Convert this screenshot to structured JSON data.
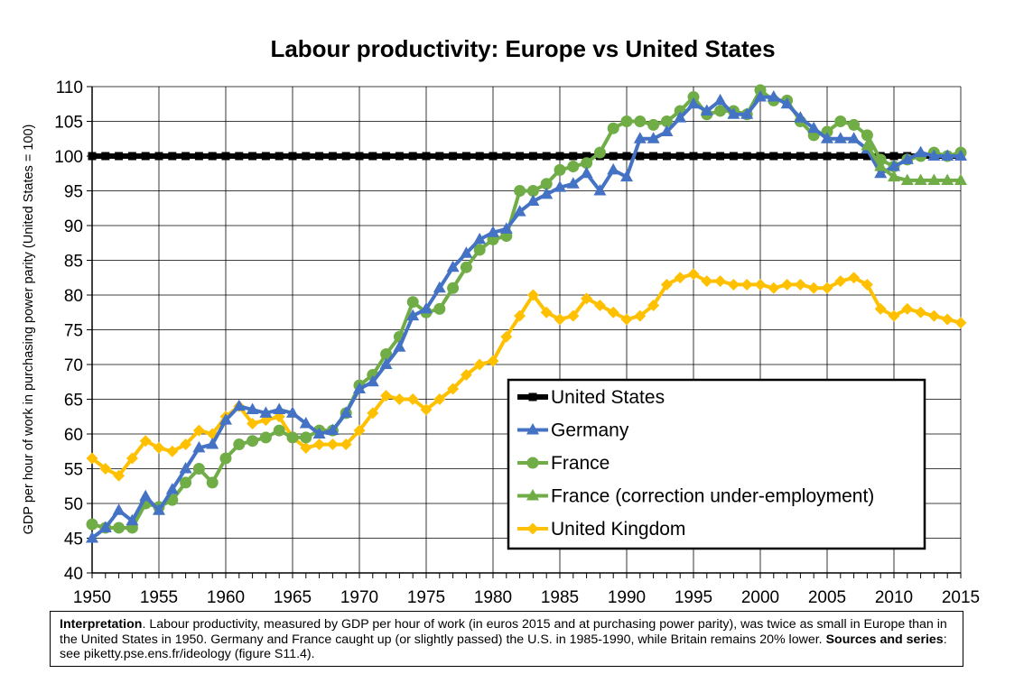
{
  "chart_data": {
    "type": "line",
    "title": "Labour productivity: Europe vs United States",
    "ylabel": "GDP per hour of work in purchasing power parity (United States = 100)",
    "xlabel": "",
    "xlim": [
      1950,
      2015
    ],
    "ylim": [
      40,
      110
    ],
    "grid": true,
    "legend_position": "bottom-right",
    "x_ticks": [
      1950,
      1955,
      1960,
      1965,
      1970,
      1975,
      1980,
      1985,
      1990,
      1995,
      2000,
      2005,
      2010,
      2015
    ],
    "y_ticks": [
      40,
      45,
      50,
      55,
      60,
      65,
      70,
      75,
      80,
      85,
      90,
      95,
      100,
      105,
      110
    ],
    "x": [
      1950,
      1951,
      1952,
      1953,
      1954,
      1955,
      1956,
      1957,
      1958,
      1959,
      1960,
      1961,
      1962,
      1963,
      1964,
      1965,
      1966,
      1967,
      1968,
      1969,
      1970,
      1971,
      1972,
      1973,
      1974,
      1975,
      1976,
      1977,
      1978,
      1979,
      1980,
      1981,
      1982,
      1983,
      1984,
      1985,
      1986,
      1987,
      1988,
      1989,
      1990,
      1991,
      1992,
      1993,
      1994,
      1995,
      1996,
      1997,
      1998,
      1999,
      2000,
      2001,
      2002,
      2003,
      2004,
      2005,
      2006,
      2007,
      2008,
      2009,
      2010,
      2011,
      2012,
      2013,
      2014,
      2015
    ],
    "series": [
      {
        "name": "United States",
        "color": "#000000",
        "marker": "square",
        "values": [
          100,
          100,
          100,
          100,
          100,
          100,
          100,
          100,
          100,
          100,
          100,
          100,
          100,
          100,
          100,
          100,
          100,
          100,
          100,
          100,
          100,
          100,
          100,
          100,
          100,
          100,
          100,
          100,
          100,
          100,
          100,
          100,
          100,
          100,
          100,
          100,
          100,
          100,
          100,
          100,
          100,
          100,
          100,
          100,
          100,
          100,
          100,
          100,
          100,
          100,
          100,
          100,
          100,
          100,
          100,
          100,
          100,
          100,
          100,
          100,
          100,
          100,
          100,
          100,
          100,
          100
        ]
      },
      {
        "name": "Germany",
        "color": "#4472C4",
        "marker": "triangle",
        "values": [
          45,
          46.5,
          49,
          47.5,
          51,
          49,
          52,
          55,
          58,
          58.5,
          62,
          64,
          63.5,
          63,
          63.5,
          63,
          61.5,
          60,
          60.5,
          63,
          66.5,
          67.5,
          70,
          72.5,
          77,
          78,
          81,
          84,
          86,
          88,
          89,
          89.5,
          92,
          93.5,
          94.5,
          95.5,
          96,
          97.5,
          95,
          98,
          97,
          102.5,
          102.5,
          103.5,
          105.5,
          107.5,
          106.5,
          108,
          106,
          106,
          108.5,
          108.5,
          107.5,
          105.5,
          104,
          102.5,
          102.5,
          102.5,
          101,
          97.5,
          98.5,
          99.5,
          100.5,
          100,
          100,
          100
        ]
      },
      {
        "name": "France",
        "color": "#70AD47",
        "marker": "circle",
        "values": [
          47,
          46.5,
          46.5,
          46.5,
          50,
          49.5,
          50.5,
          53,
          55,
          53,
          56.5,
          58.5,
          59,
          59.5,
          60.5,
          59.5,
          59.5,
          60.5,
          60.5,
          63,
          67,
          68.5,
          71.5,
          74,
          79,
          77.5,
          78,
          81,
          84,
          86.5,
          88,
          88.5,
          95,
          95,
          96,
          98,
          98.5,
          99,
          100.5,
          104,
          105,
          105,
          104.5,
          105,
          106.5,
          108.5,
          106,
          106.5,
          106.5,
          106,
          109.5,
          108,
          108,
          105,
          103,
          103.5,
          105,
          104.5,
          103,
          99.5,
          98.5,
          99.5,
          100,
          100.5,
          100,
          100.5
        ]
      },
      {
        "name": "France (correction under-employment)",
        "color": "#70AD47",
        "marker": "triangle",
        "values": [
          null,
          null,
          null,
          null,
          null,
          null,
          null,
          null,
          null,
          null,
          null,
          null,
          null,
          null,
          null,
          null,
          null,
          null,
          null,
          null,
          null,
          null,
          null,
          null,
          null,
          null,
          null,
          null,
          null,
          null,
          null,
          null,
          null,
          null,
          null,
          null,
          null,
          null,
          null,
          null,
          null,
          null,
          null,
          null,
          null,
          null,
          null,
          null,
          null,
          null,
          null,
          null,
          null,
          null,
          null,
          null,
          null,
          null,
          101.5,
          98.5,
          97,
          96.5,
          96.5,
          96.5,
          96.5,
          96.5
        ]
      },
      {
        "name": "United Kingdom",
        "color": "#FFC000",
        "marker": "diamond",
        "values": [
          56.5,
          55,
          54,
          56.5,
          59,
          58,
          57.5,
          58.5,
          60.5,
          60,
          62.5,
          64,
          61.5,
          62,
          62.5,
          59.5,
          58,
          58.5,
          58.5,
          58.5,
          60.5,
          63,
          65.5,
          65,
          65,
          63.5,
          65,
          66.5,
          68.5,
          70,
          70.5,
          74,
          77,
          80,
          77.5,
          76.5,
          77,
          79.5,
          78.5,
          77.5,
          76.5,
          77,
          78.5,
          81.5,
          82.5,
          83,
          82,
          82,
          81.5,
          81.5,
          81.5,
          81,
          81.5,
          81.5,
          81,
          81,
          82,
          82.5,
          81.5,
          78,
          77,
          78,
          77.5,
          77,
          76.5,
          76
        ]
      }
    ]
  },
  "note": {
    "interpretation_label": "Interpretation",
    "interpretation_text": ". Labour productivity, measured by GDP per hour of work (in euros 2015 and at purchasing power parity), was twice as small in Europe than in the United States in 1950. Germany and France caught up (or slightly passed) the U.S. in 1985-1990, while Britain remains 20% lower. ",
    "sources_label": "Sources and series",
    "sources_text": ": see piketty.pse.ens.fr/ideology (figure S11.4)."
  }
}
